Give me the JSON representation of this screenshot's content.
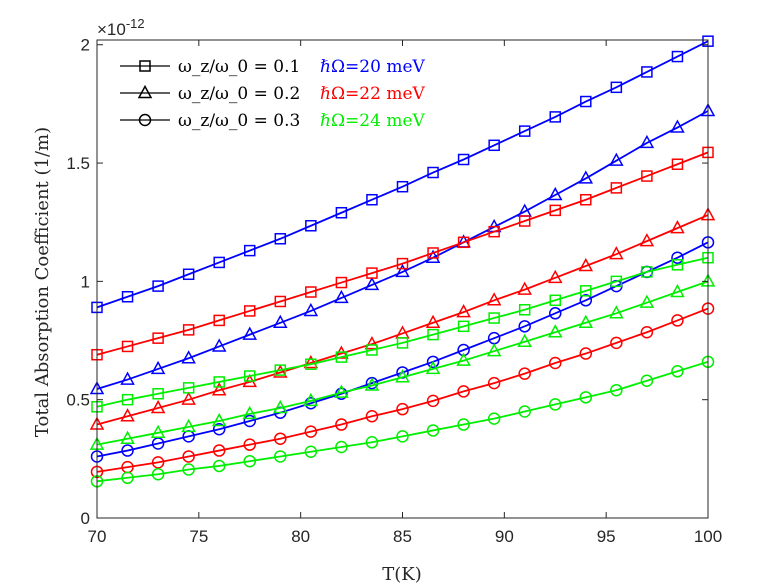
{
  "chart_data": {
    "type": "line",
    "xlabel": "T(K)",
    "ylabel": "Total Absorption Coefficient (1/m)",
    "xlim": [
      70,
      100
    ],
    "ylim": [
      0,
      2.02
    ],
    "y_exponent_label": "×10",
    "y_exponent": "-12",
    "x_ticks": [
      "70",
      "75",
      "80",
      "85",
      "90",
      "95",
      "100"
    ],
    "y_ticks": [
      "0",
      "0.5",
      "1",
      "1.5",
      "2"
    ],
    "x": [
      70,
      71.5,
      73,
      74.5,
      76,
      77.5,
      79,
      80.5,
      82,
      83.5,
      85,
      86.5,
      88,
      89.5,
      91,
      92.5,
      94,
      95.5,
      97,
      98.5,
      100
    ],
    "colors": {
      "blue": "#0000ff",
      "red": "#ff0000",
      "green": "#00ee00",
      "axis": "#262626"
    },
    "series": [
      {
        "color": "blue",
        "marker": "square",
        "values": [
          0.89,
          0.935,
          0.98,
          1.03,
          1.08,
          1.13,
          1.18,
          1.235,
          1.29,
          1.345,
          1.4,
          1.46,
          1.515,
          1.575,
          1.635,
          1.695,
          1.76,
          1.82,
          1.885,
          1.95,
          2.015
        ]
      },
      {
        "color": "blue",
        "marker": "triangle",
        "values": [
          0.545,
          0.585,
          0.63,
          0.675,
          0.725,
          0.775,
          0.825,
          0.875,
          0.93,
          0.985,
          1.04,
          1.1,
          1.165,
          1.23,
          1.295,
          1.365,
          1.435,
          1.51,
          1.585,
          1.65,
          1.72
        ]
      },
      {
        "color": "blue",
        "marker": "circle",
        "values": [
          0.26,
          0.285,
          0.315,
          0.345,
          0.375,
          0.41,
          0.445,
          0.485,
          0.525,
          0.57,
          0.615,
          0.66,
          0.71,
          0.76,
          0.81,
          0.865,
          0.92,
          0.98,
          1.04,
          1.1,
          1.165
        ]
      },
      {
        "color": "red",
        "marker": "square",
        "values": [
          0.69,
          0.725,
          0.76,
          0.795,
          0.835,
          0.875,
          0.915,
          0.955,
          0.995,
          1.035,
          1.075,
          1.12,
          1.165,
          1.21,
          1.255,
          1.3,
          1.345,
          1.395,
          1.445,
          1.495,
          1.545
        ]
      },
      {
        "color": "red",
        "marker": "triangle",
        "values": [
          0.395,
          0.43,
          0.465,
          0.5,
          0.54,
          0.575,
          0.615,
          0.655,
          0.695,
          0.735,
          0.78,
          0.825,
          0.87,
          0.92,
          0.965,
          1.015,
          1.065,
          1.115,
          1.17,
          1.225,
          1.28
        ]
      },
      {
        "color": "red",
        "marker": "circle",
        "values": [
          0.195,
          0.215,
          0.235,
          0.26,
          0.285,
          0.31,
          0.335,
          0.365,
          0.395,
          0.43,
          0.46,
          0.495,
          0.535,
          0.57,
          0.61,
          0.655,
          0.695,
          0.74,
          0.785,
          0.835,
          0.885
        ]
      },
      {
        "color": "green",
        "marker": "square",
        "values": [
          0.47,
          0.5,
          0.525,
          0.55,
          0.575,
          0.6,
          0.625,
          0.65,
          0.68,
          0.71,
          0.74,
          0.775,
          0.81,
          0.845,
          0.88,
          0.92,
          0.96,
          1.0,
          1.04,
          1.07,
          1.1
        ]
      },
      {
        "color": "green",
        "marker": "triangle",
        "values": [
          0.31,
          0.335,
          0.36,
          0.385,
          0.41,
          0.44,
          0.465,
          0.495,
          0.53,
          0.56,
          0.595,
          0.63,
          0.665,
          0.705,
          0.745,
          0.785,
          0.825,
          0.865,
          0.91,
          0.955,
          1.0
        ]
      },
      {
        "color": "green",
        "marker": "circle",
        "values": [
          0.155,
          0.17,
          0.185,
          0.205,
          0.22,
          0.24,
          0.26,
          0.28,
          0.3,
          0.32,
          0.345,
          0.37,
          0.395,
          0.42,
          0.45,
          0.48,
          0.51,
          0.54,
          0.58,
          0.62,
          0.66
        ]
      }
    ],
    "legend": {
      "position": "top-left",
      "marker_entries": [
        {
          "marker": "square",
          "label": "ω_z/ω_0 = 0.1"
        },
        {
          "marker": "triangle",
          "label": "ω_z/ω_0 = 0.2"
        },
        {
          "marker": "circle",
          "label": "ω_z/ω_0 = 0.3"
        }
      ],
      "color_entries": [
        {
          "color": "blue",
          "label": "ℏΩ=20 meV"
        },
        {
          "color": "red",
          "label": "ℏΩ=22 meV"
        },
        {
          "color": "green",
          "label": "ℏΩ=24 meV"
        }
      ]
    },
    "grid": false
  }
}
